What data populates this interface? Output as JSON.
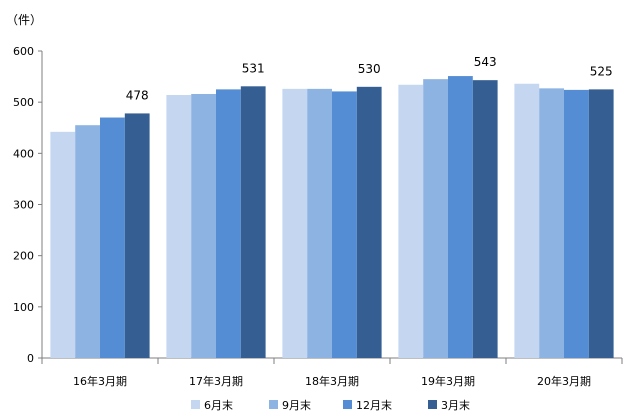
{
  "chart_data": {
    "type": "bar",
    "unit_label": "（件）",
    "categories": [
      "16年3月期",
      "17年3月期",
      "18年3月期",
      "19年3月期",
      "20年3月期"
    ],
    "series": [
      {
        "name": "6月末",
        "color": "#c5d7f0",
        "values": [
          442,
          514,
          526,
          534,
          536
        ]
      },
      {
        "name": "9月末",
        "color": "#8db3e2",
        "values": [
          455,
          516,
          526,
          545,
          527
        ]
      },
      {
        "name": "12月末",
        "color": "#548dd4",
        "values": [
          470,
          525,
          521,
          551,
          524
        ]
      },
      {
        "name": "3月末",
        "color": "#355f93",
        "values": [
          478,
          531,
          530,
          543,
          525
        ]
      }
    ],
    "data_labels": [
      {
        "category": "16年3月期",
        "series": "3月末",
        "text": "478"
      },
      {
        "category": "17年3月期",
        "series": "3月末",
        "text": "531"
      },
      {
        "category": "18年3月期",
        "series": "3月末",
        "text": "530"
      },
      {
        "category": "19年3月期",
        "series": "3月末",
        "text": "543"
      },
      {
        "category": "20年3月期",
        "series": "3月末",
        "text": "525"
      }
    ],
    "y_ticks": [
      "0",
      "100",
      "200",
      "300",
      "400",
      "500",
      "600"
    ],
    "ylim": [
      0,
      600
    ],
    "grid": false,
    "legend_position": "bottom"
  }
}
